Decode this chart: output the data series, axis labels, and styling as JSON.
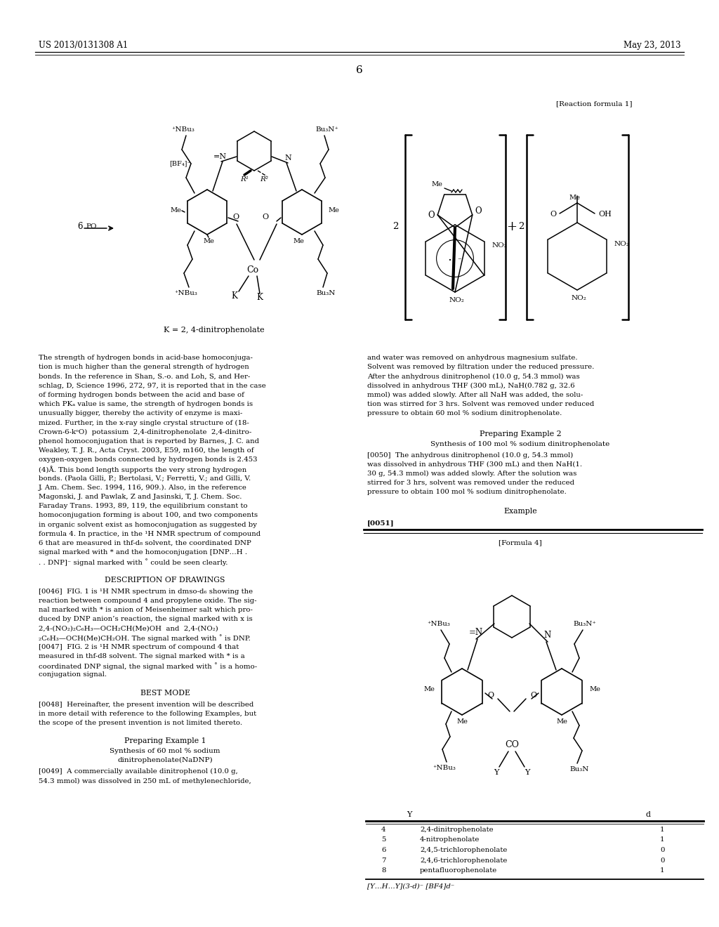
{
  "bg": "#ffffff",
  "header_left": "US 2013/0131308 A1",
  "header_right": "May 23, 2013",
  "page_num": "6",
  "rxn_label": "[Reaction formula 1]",
  "k_label": "K = 2, 4-dinitrophenolate",
  "f4_label": "[Formula 4]",
  "f4_footer": "[Y…H…Y](3-d)⁻ [BF4]d⁻",
  "lc_lines": [
    "The strength of hydrogen bonds in acid-base homoconjuga-",
    "tion is much higher than the general strength of hydrogen",
    "bonds. In the reference in Shan, S.-o. and Loh, S, and Her-",
    "schlag, D, Science 1996, 272, 97, it is reported that in the case",
    "of forming hydrogen bonds between the acid and base of",
    "which PKₐ value is same, the strength of hydrogen bonds is",
    "unusually bigger, thereby the activity of enzyme is maxi-",
    "mized. Further, in the x-ray single crystal structure of (18-",
    "Crown-6-kᵒO)  potassium  2,4-dinitrophenolate  2,4-dinitro-",
    "phenol homoconjugation that is reported by Barnes, J. C. and",
    "Weakley, T. J. R., Acta Cryst. 2003, E59, m160, the length of",
    "oxygen-oxygen bonds connected by hydrogen bonds is 2.453",
    "(4)Å. This bond length supports the very strong hydrogen",
    "bonds. (Paola Gilli, P.; Bertolasi, V.; Ferretti, V.; and Gilli, V.",
    "J. Am. Chem. Sec. 1994, 116, 909.). Also, in the reference",
    "Magonski, J. and Pawlak, Z and Jasinski, T, J. Chem. Soc.",
    "Faraday Trans. 1993, 89, 119, the equilibrium constant to",
    "homoconjugation forming is about 100, and two components",
    "in organic solvent exist as homoconjugation as suggested by",
    "formula 4. In practice, in the ¹H NMR spectrum of compound",
    "6 that are measured in thf-d₈ solvent, the coordinated DNP",
    "signal marked with * and the homoconjugation [DNP…H .",
    ". . DNP]⁻ signal marked with ˚ could be seen clearly."
  ],
  "desc_title": "DESCRIPTION OF DRAWINGS",
  "desc_lines": [
    "[0046]  FIG. 1 is ¹H NMR spectrum in dmso-d₆ showing the",
    "reaction between compound 4 and propylene oxide. The sig-",
    "nal marked with * is anion of Meisenheimer salt which pro-",
    "duced by DNP anion’s reaction, the signal marked with x is",
    "2,4-(NO₂)₂C₆H₃—OCH₂CH(Me)OH  and  2,4-(NO₂)",
    "₂C₆H₃—OCH(Me)CH₂OH. The signal marked with ˚ is DNP.",
    "[0047]  FIG. 2 is ¹H NMR spectrum of compound 4 that",
    "measured in thf-d8 solvent. The signal marked with * is a",
    "coordinated DNP signal, the signal marked with ˚ is a homo-",
    "conjugation signal."
  ],
  "best_title": "BEST MODE",
  "best_lines": [
    "[0048]  Hereinafter, the present invention will be described",
    "in more detail with reference to the following Examples, but",
    "the scope of the present invention is not limited thereto."
  ],
  "pe1_title": "Preparing Example 1",
  "pe1_sub1": "Synthesis of 60 mol % sodium",
  "pe1_sub2": "dinitrophenolate(NaDNP)",
  "pe1_lines": [
    "[0049]  A commercially available dinitrophenol (10.0 g,",
    "54.3 mmol) was dissolved in 250 mL of methylenechloride,"
  ],
  "rc_lines": [
    "and water was removed on anhydrous magnesium sulfate.",
    "Solvent was removed by filtration under the reduced pressure.",
    "After the anhydrous dinitrophenol (10.0 g, 54.3 mmol) was",
    "dissolved in anhydrous THF (300 mL), NaH(0.782 g, 32.6",
    "mmol) was added slowly. After all NaH was added, the solu-",
    "tion was stirred for 3 hrs. Solvent was removed under reduced",
    "pressure to obtain 60 mol % sodium dinitrophenolate."
  ],
  "pe2_title": "Preparing Example 2",
  "pe2_sub": "Synthesis of 100 mol % sodium dinitrophenolate",
  "pe2_lines": [
    "[0050]  The anhydrous dinitrophenol (10.0 g, 54.3 mmol)",
    "was dissolved in anhydrous THF (300 mL) and then NaH(1.",
    "30 g, 54.3 mmol) was added slowly. After the solution was",
    "stirred for 3 hrs, solvent was removed under the reduced",
    "pressure to obtain 100 mol % sodium dinitrophenolate."
  ],
  "ex_title": "Example",
  "ref0051": "[0051]",
  "th": [
    "Y",
    "d"
  ],
  "tr": [
    [
      "4",
      "2,4-dinitrophenolate",
      "1"
    ],
    [
      "5",
      "4-nitrophenolate",
      "1"
    ],
    [
      "6",
      "2,4,5-trichlorophenolate",
      "0"
    ],
    [
      "7",
      "2,4,6-trichlorophenolate",
      "0"
    ],
    [
      "8",
      "pentafluorophenolate",
      "1"
    ]
  ]
}
